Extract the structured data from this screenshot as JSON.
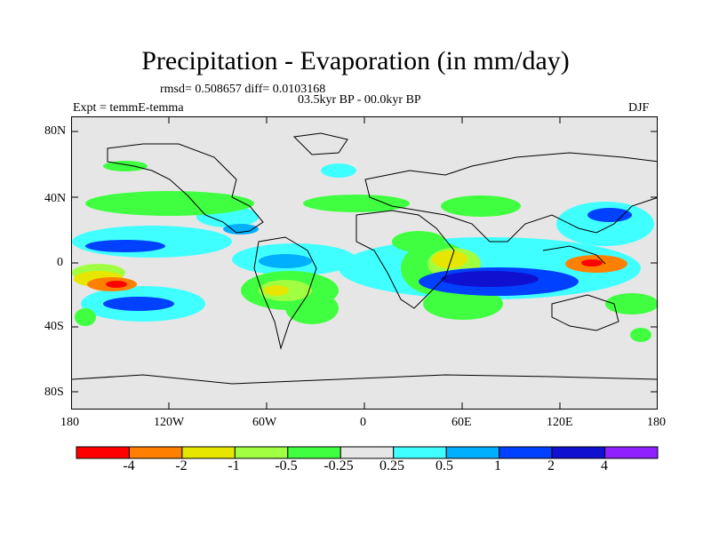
{
  "title": "Precipitation - Evaporation (in mm/day)",
  "stats": "rmsd= 0.508657 diff= 0.0103168",
  "period": "03.5kyr BP - 00.0kyr BP",
  "experiment": "Expt = temmE-temma",
  "season": "DJF",
  "colors": {
    "land_bg": "#e6e6e6",
    "coast": "#000000"
  },
  "lat_labels": [
    "80N",
    "40N",
    "0",
    "40S",
    "80S"
  ],
  "lon_labels": [
    "180",
    "120W",
    "60W",
    "0",
    "60E",
    "120E",
    "180"
  ],
  "colorbar": {
    "colors": [
      "#ff0000",
      "#ff8000",
      "#e6e600",
      "#a0ff40",
      "#40ff40",
      "#e6e6e6",
      "#40ffff",
      "#00b0ff",
      "#0040ff",
      "#1010d0",
      "#9020ff"
    ],
    "labels": [
      "-4",
      "-2",
      "-1",
      "-0.5",
      "-0.25",
      "0.25",
      "0.5",
      "1",
      "2",
      "4"
    ]
  }
}
